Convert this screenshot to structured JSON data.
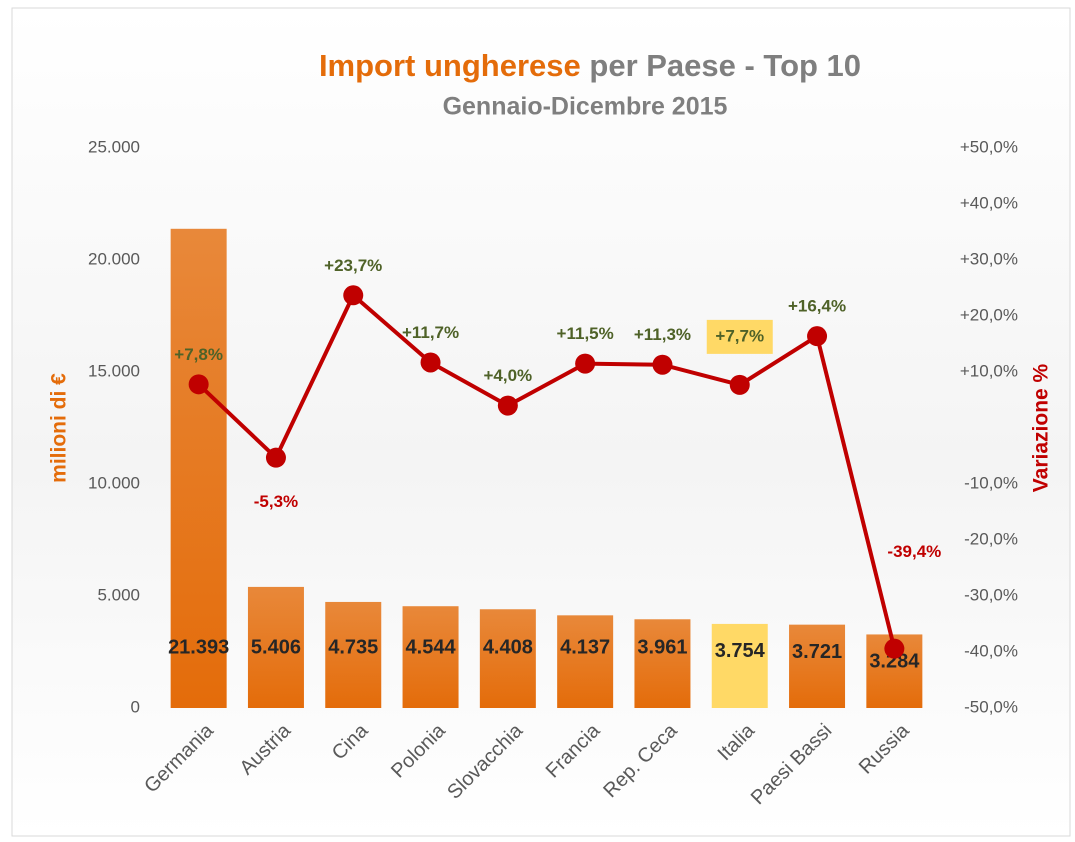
{
  "chart_data": {
    "type": "bar",
    "title": [
      "Import ungherese",
      "per Paese - Top 10"
    ],
    "title_colors": [
      "#e46c0a",
      "#7f7f7f"
    ],
    "subtitle": "Gennaio-Dicembre 2015",
    "ylabel": "milioni di €",
    "y2label": "Variazione %",
    "categories": [
      "Germania",
      "Austria",
      "Cina",
      "Polonia",
      "Slovacchia",
      "Francia",
      "Rep. Ceca",
      "Italia",
      "Paesi Bassi",
      "Russia"
    ],
    "series": [
      {
        "type": "bar",
        "color": "#e46c0a",
        "values": [
          21393,
          5406,
          4735,
          4544,
          4408,
          4137,
          3961,
          3754,
          3721,
          3284
        ],
        "value_labels": [
          "21.393",
          "5.406",
          "4.735",
          "4.544",
          "4.408",
          "4.137",
          "3.961",
          "3.754",
          "3.721",
          "3.284"
        ]
      },
      {
        "type": "line",
        "axis": "y2",
        "color": "#c00000",
        "values": [
          7.8,
          -5.3,
          23.7,
          11.7,
          4.0,
          11.5,
          11.3,
          7.7,
          16.4,
          -39.4
        ],
        "value_labels": [
          "+7,8%",
          "-5,3%",
          "+23,7%",
          "+11,7%",
          "+4,0%",
          "+11,5%",
          "+11,3%",
          "+7,7%",
          "+16,4%",
          "-39,4%"
        ]
      }
    ],
    "highlight_category": "Italia",
    "highlight_color": "#ffd966",
    "positive_label_color": "#4f6228",
    "negative_label_color": "#c00000",
    "ylim": [
      0,
      25000
    ],
    "yticks": [
      {
        "value": 0,
        "label": "0"
      },
      {
        "value": 5000,
        "label": "5.000"
      },
      {
        "value": 10000,
        "label": "10.000"
      },
      {
        "value": 15000,
        "label": "15.000"
      },
      {
        "value": 20000,
        "label": "20.000"
      },
      {
        "value": 25000,
        "label": "25.000"
      }
    ],
    "y2lim": [
      -50,
      50
    ],
    "y2ticks": [
      {
        "value": -50,
        "label": "-50,0%"
      },
      {
        "value": -40,
        "label": "-40,0%"
      },
      {
        "value": -30,
        "label": "-30,0%"
      },
      {
        "value": -20,
        "label": "-20,0%"
      },
      {
        "value": -10,
        "label": "-10,0%"
      },
      {
        "value": 10,
        "label": "+10,0%"
      },
      {
        "value": 20,
        "label": "+20,0%"
      },
      {
        "value": 30,
        "label": "+30,0%"
      },
      {
        "value": 40,
        "label": "+40,0%"
      },
      {
        "value": 50,
        "label": "+50,0%"
      }
    ],
    "grid": false
  }
}
